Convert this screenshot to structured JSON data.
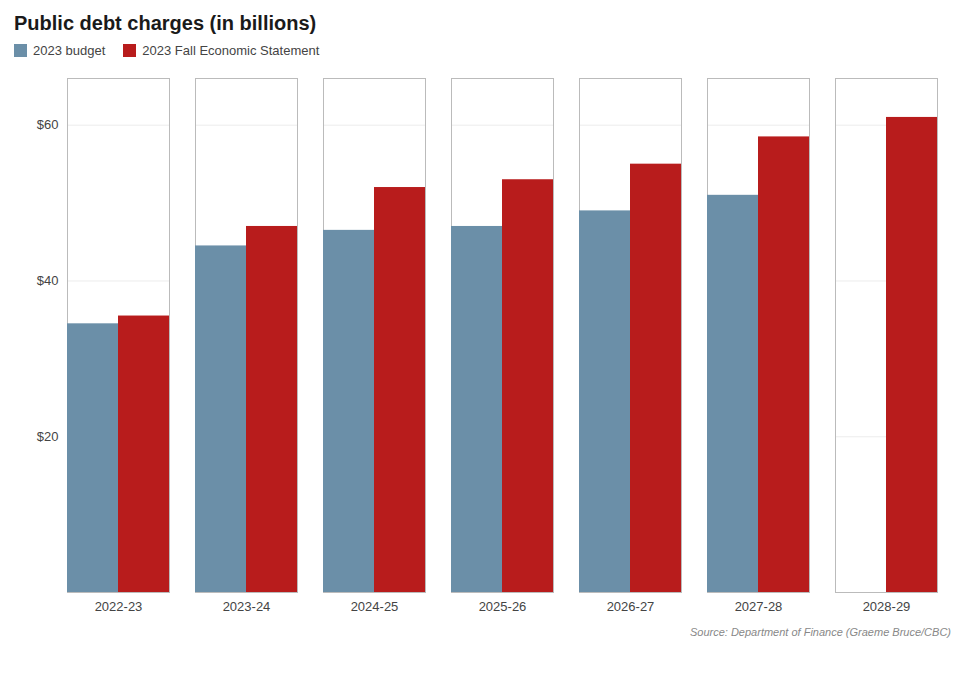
{
  "chart_data": {
    "type": "bar",
    "title": "Public debt charges (in billions)",
    "categories": [
      "2022-23",
      "2023-24",
      "2024-25",
      "2025-26",
      "2026-27",
      "2027-28",
      "2028-29"
    ],
    "series": [
      {
        "name": "2023 budget",
        "color": "#6b8fa8",
        "values": [
          34.5,
          44.5,
          46.5,
          47.0,
          49.0,
          51.0,
          null
        ]
      },
      {
        "name": "2023 Fall Economic Statement",
        "color": "#b81c1c",
        "values": [
          35.5,
          47.0,
          52.0,
          53.0,
          55.0,
          58.5,
          61.0
        ]
      }
    ],
    "ylim": [
      0,
      66
    ],
    "yticks": [
      {
        "value": 20,
        "label": "$20"
      },
      {
        "value": 40,
        "label": "$40"
      },
      {
        "value": 60,
        "label": "$60"
      }
    ],
    "grid": true,
    "legend": "upper left",
    "caption": "Source: Department of Finance (Graeme Bruce/CBC)"
  }
}
